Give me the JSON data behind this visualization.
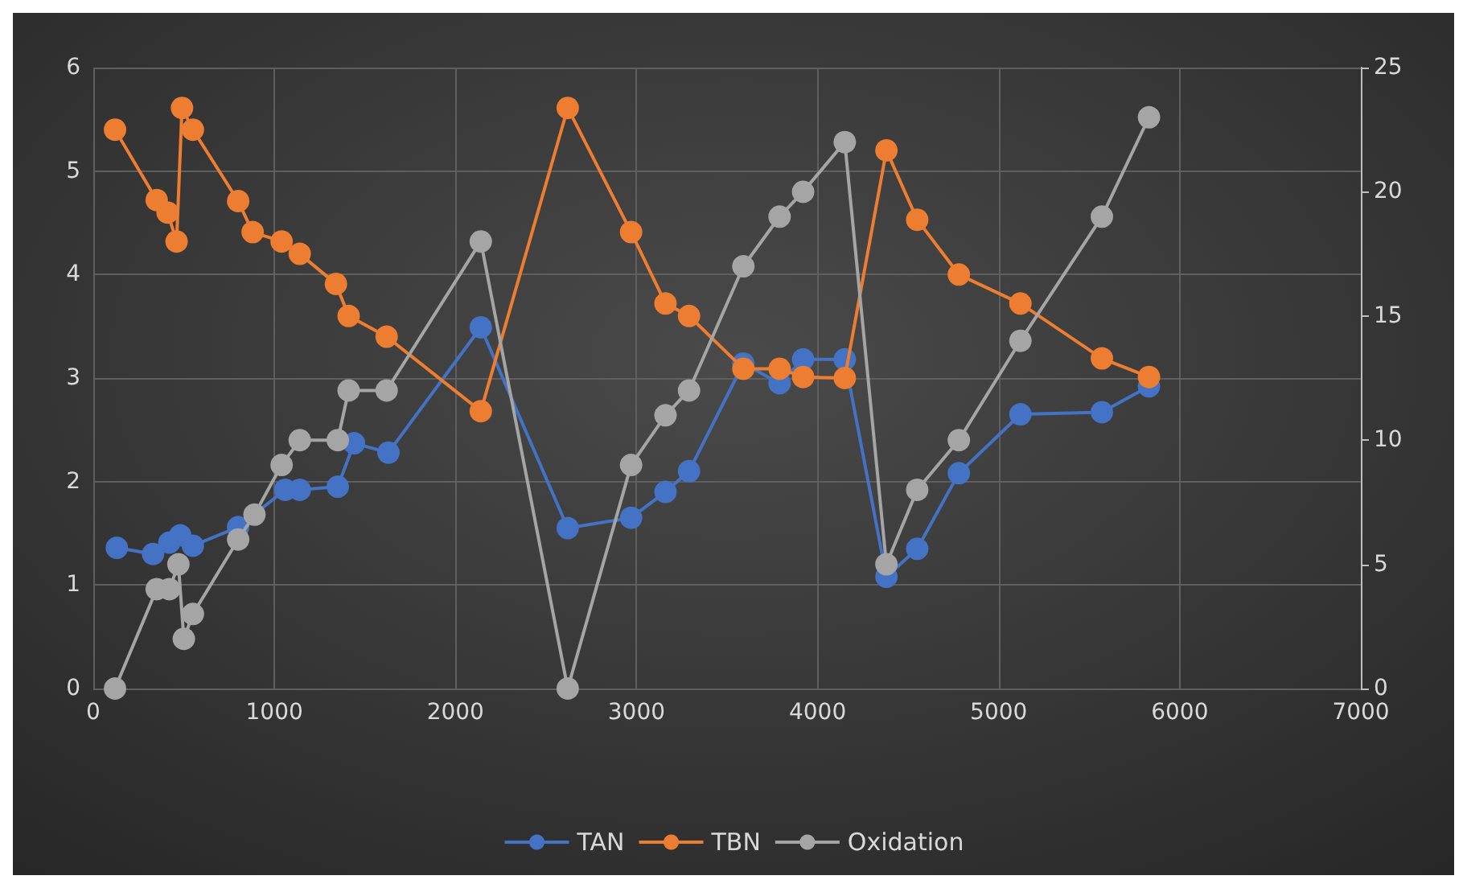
{
  "chart_data": {
    "type": "line",
    "marker": "circle",
    "grid": true,
    "legend": "bottom",
    "xlim": [
      0,
      7000
    ],
    "xticks": [
      0,
      1000,
      2000,
      3000,
      4000,
      5000,
      6000,
      7000
    ],
    "ylim": [
      0,
      6
    ],
    "yticks": [
      0,
      1,
      2,
      3,
      4,
      5,
      6
    ],
    "y2lim": [
      0,
      25
    ],
    "y2ticks": [
      0,
      5,
      10,
      15,
      20,
      25
    ],
    "series": [
      {
        "name": "TAN",
        "color": "#4472c4",
        "x": [
          130,
          330,
          420,
          480,
          550,
          800,
          1060,
          1140,
          1350,
          1440,
          1630,
          2140,
          2620,
          2970,
          3160,
          3290,
          3590,
          3790,
          3920,
          4150,
          4380,
          4550,
          4780,
          5120,
          5570,
          5830
        ],
        "values": [
          1.36,
          1.3,
          1.41,
          1.48,
          1.38,
          1.56,
          1.92,
          1.92,
          1.95,
          2.37,
          2.28,
          3.49,
          1.55,
          1.65,
          1.9,
          2.1,
          3.14,
          2.95,
          3.18,
          3.18,
          1.08,
          1.35,
          2.08,
          2.65,
          2.67,
          2.92
        ]
      },
      {
        "name": "TBN",
        "color": "#ed7d31",
        "x": [
          120,
          350,
          410,
          460,
          490,
          550,
          800,
          880,
          1040,
          1140,
          1340,
          1410,
          1620,
          2140,
          2620,
          2970,
          3160,
          3290,
          3590,
          3790,
          3920,
          4150,
          4380,
          4550,
          4780,
          5120,
          5570,
          5830
        ],
        "values": [
          5.4,
          4.72,
          4.6,
          4.32,
          5.61,
          5.4,
          4.71,
          4.41,
          4.32,
          4.2,
          3.91,
          3.6,
          3.4,
          2.68,
          5.61,
          4.41,
          3.72,
          3.6,
          3.09,
          3.09,
          3.01,
          3.0,
          5.2,
          4.53,
          4.0,
          3.72,
          3.19,
          3.01
        ]
      },
      {
        "name": "Oxidation",
        "color": "#a5a5a5",
        "axis": "y2",
        "x": [
          120,
          350,
          420,
          470,
          500,
          550,
          800,
          890,
          1040,
          1140,
          1350,
          1410,
          1620,
          2140,
          2620,
          2970,
          3160,
          3290,
          3590,
          3790,
          3920,
          4150,
          4380,
          4550,
          4780,
          5120,
          5570,
          5830
        ],
        "values": [
          0,
          4,
          4,
          5,
          2,
          3,
          6,
          7,
          9,
          10,
          10,
          12,
          12,
          18,
          0,
          9,
          11,
          12,
          17,
          19,
          20,
          22,
          5,
          8,
          10,
          14,
          19,
          23
        ]
      }
    ]
  }
}
